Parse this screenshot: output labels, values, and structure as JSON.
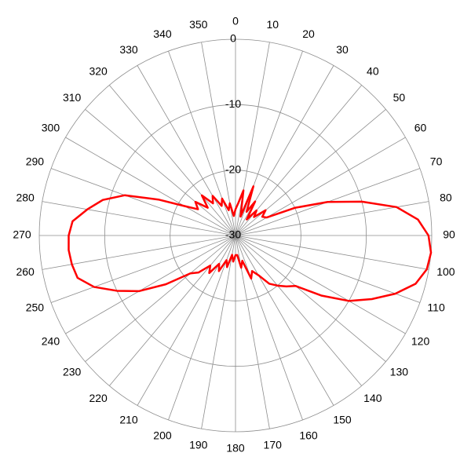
{
  "chart_data": {
    "type": "polar",
    "theta": [
      0,
      5,
      10,
      15,
      20,
      25,
      30,
      35,
      40,
      45,
      50,
      55,
      60,
      65,
      70,
      75,
      80,
      85,
      90,
      95,
      100,
      105,
      110,
      115,
      120,
      125,
      130,
      135,
      140,
      145,
      150,
      155,
      160,
      165,
      170,
      175,
      180,
      185,
      190,
      195,
      200,
      205,
      210,
      215,
      220,
      225,
      230,
      235,
      240,
      245,
      250,
      255,
      260,
      265,
      270,
      275,
      280,
      285,
      290,
      295,
      300,
      305,
      310,
      315,
      320,
      325,
      330,
      335,
      340,
      345,
      350,
      355
    ],
    "r": [
      -26,
      -25,
      -23,
      -27,
      -22,
      -26,
      -24,
      -27,
      -25,
      -26,
      -24,
      -25,
      -24.5,
      -20,
      -15,
      -10,
      -5,
      -2,
      -0.5,
      0,
      -0.3,
      -1.5,
      -4,
      -7,
      -10,
      -14,
      -18,
      -19,
      -20,
      -21,
      -23,
      -24,
      -23,
      -26,
      -25,
      -27,
      -27,
      -26,
      -27,
      -25,
      -26,
      -24,
      -25,
      -23,
      -24,
      -22,
      -21,
      -17,
      -13,
      -10,
      -7,
      -5,
      -4.6,
      -4.4,
      -4.5,
      -5,
      -7,
      -9,
      -12,
      -17,
      -21,
      -23,
      -22,
      -24,
      -22,
      -24,
      -23,
      -25,
      -24,
      -26,
      -25,
      -27
    ],
    "color": "#ff0000",
    "rlim": [
      -30,
      0
    ],
    "rticks": [
      -30,
      -20,
      -10,
      0
    ],
    "thetaticks": [
      0,
      10,
      20,
      30,
      40,
      50,
      60,
      70,
      80,
      90,
      100,
      110,
      120,
      130,
      140,
      150,
      160,
      170,
      180,
      190,
      200,
      210,
      220,
      230,
      240,
      250,
      260,
      270,
      280,
      290,
      300,
      310,
      320,
      330,
      340,
      350
    ],
    "grid": true
  }
}
